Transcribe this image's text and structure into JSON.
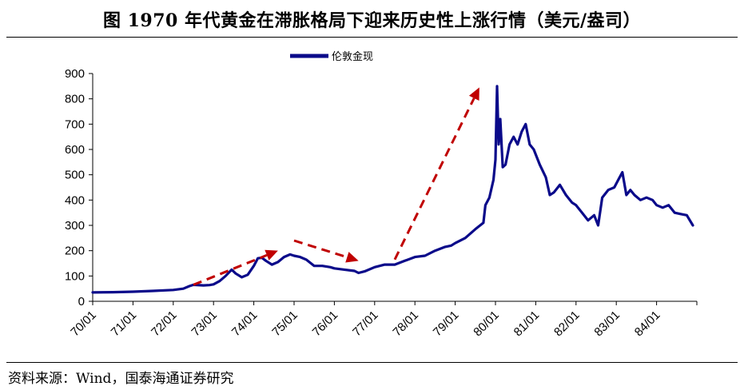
{
  "title": "图  1970 年代黄金在滞胀格局下迎来历史性上涨行情（美元/盎司）",
  "source": "资料来源：Wind，国泰海通证券研究",
  "colors": {
    "series": "#0a0a8a",
    "arrow": "#c00000",
    "axis": "#000000"
  },
  "chart_data": {
    "type": "line",
    "title": "1970 年代黄金在滞胀格局下迎来历史性上涨行情",
    "unit": "美元/盎司",
    "xlabel": "",
    "ylabel": "",
    "ylim": [
      0,
      900
    ],
    "yticks": [
      0,
      100,
      200,
      300,
      400,
      500,
      600,
      700,
      800,
      900
    ],
    "xlim": [
      1970.0,
      1985.0
    ],
    "xticks": [
      "70/01",
      "71/01",
      "72/01",
      "73/01",
      "74/01",
      "75/01",
      "76/01",
      "77/01",
      "78/01",
      "79/01",
      "80/01",
      "81/01",
      "82/01",
      "83/01",
      "84/01"
    ],
    "legend": {
      "position": "top-center",
      "entries": [
        "伦敦金现"
      ]
    },
    "series": [
      {
        "name": "伦敦金现",
        "x": [
          1970.0,
          1970.5,
          1971.0,
          1971.5,
          1972.0,
          1972.25,
          1972.4,
          1972.5,
          1972.75,
          1972.9,
          1973.0,
          1973.15,
          1973.3,
          1973.45,
          1973.55,
          1973.7,
          1973.85,
          1974.0,
          1974.1,
          1974.2,
          1974.3,
          1974.45,
          1974.6,
          1974.75,
          1974.9,
          1975.0,
          1975.15,
          1975.3,
          1975.5,
          1975.7,
          1975.9,
          1976.0,
          1976.25,
          1976.5,
          1976.6,
          1976.75,
          1977.0,
          1977.25,
          1977.5,
          1977.75,
          1978.0,
          1978.25,
          1978.5,
          1978.75,
          1978.9,
          1979.0,
          1979.25,
          1979.5,
          1979.7,
          1979.75,
          1979.85,
          1979.95,
          1980.0,
          1980.04,
          1980.08,
          1980.12,
          1980.18,
          1980.25,
          1980.35,
          1980.45,
          1980.55,
          1980.65,
          1980.75,
          1980.85,
          1980.95,
          1981.1,
          1981.25,
          1981.35,
          1981.45,
          1981.6,
          1981.75,
          1981.9,
          1982.0,
          1982.15,
          1982.3,
          1982.45,
          1982.55,
          1982.65,
          1982.8,
          1982.95,
          1983.05,
          1983.15,
          1983.25,
          1983.35,
          1983.45,
          1983.6,
          1983.75,
          1983.9,
          1984.0,
          1984.15,
          1984.3,
          1984.45,
          1984.6,
          1984.75,
          1984.9
        ],
        "values": [
          35,
          36,
          38,
          41,
          45,
          50,
          60,
          65,
          63,
          64,
          67,
          80,
          100,
          125,
          110,
          95,
          105,
          140,
          170,
          172,
          160,
          145,
          155,
          175,
          185,
          180,
          175,
          165,
          140,
          140,
          135,
          130,
          125,
          120,
          112,
          118,
          135,
          145,
          145,
          160,
          175,
          180,
          200,
          215,
          220,
          230,
          250,
          285,
          310,
          380,
          410,
          480,
          560,
          850,
          620,
          720,
          530,
          540,
          620,
          650,
          620,
          670,
          700,
          620,
          600,
          540,
          490,
          420,
          430,
          460,
          420,
          390,
          380,
          350,
          320,
          340,
          300,
          410,
          440,
          450,
          480,
          510,
          420,
          440,
          420,
          400,
          410,
          400,
          380,
          370,
          380,
          350,
          345,
          340,
          300
        ]
      }
    ],
    "annotations": [
      {
        "type": "arrow",
        "style": "dashed",
        "from": [
          1972.5,
          65
        ],
        "to": [
          1974.6,
          200
        ]
      },
      {
        "type": "arrow",
        "style": "dashed",
        "from": [
          1975.0,
          240
        ],
        "to": [
          1976.6,
          160
        ]
      },
      {
        "type": "arrow",
        "style": "dashed",
        "from": [
          1977.5,
          165
        ],
        "to": [
          1979.6,
          845
        ]
      }
    ]
  }
}
